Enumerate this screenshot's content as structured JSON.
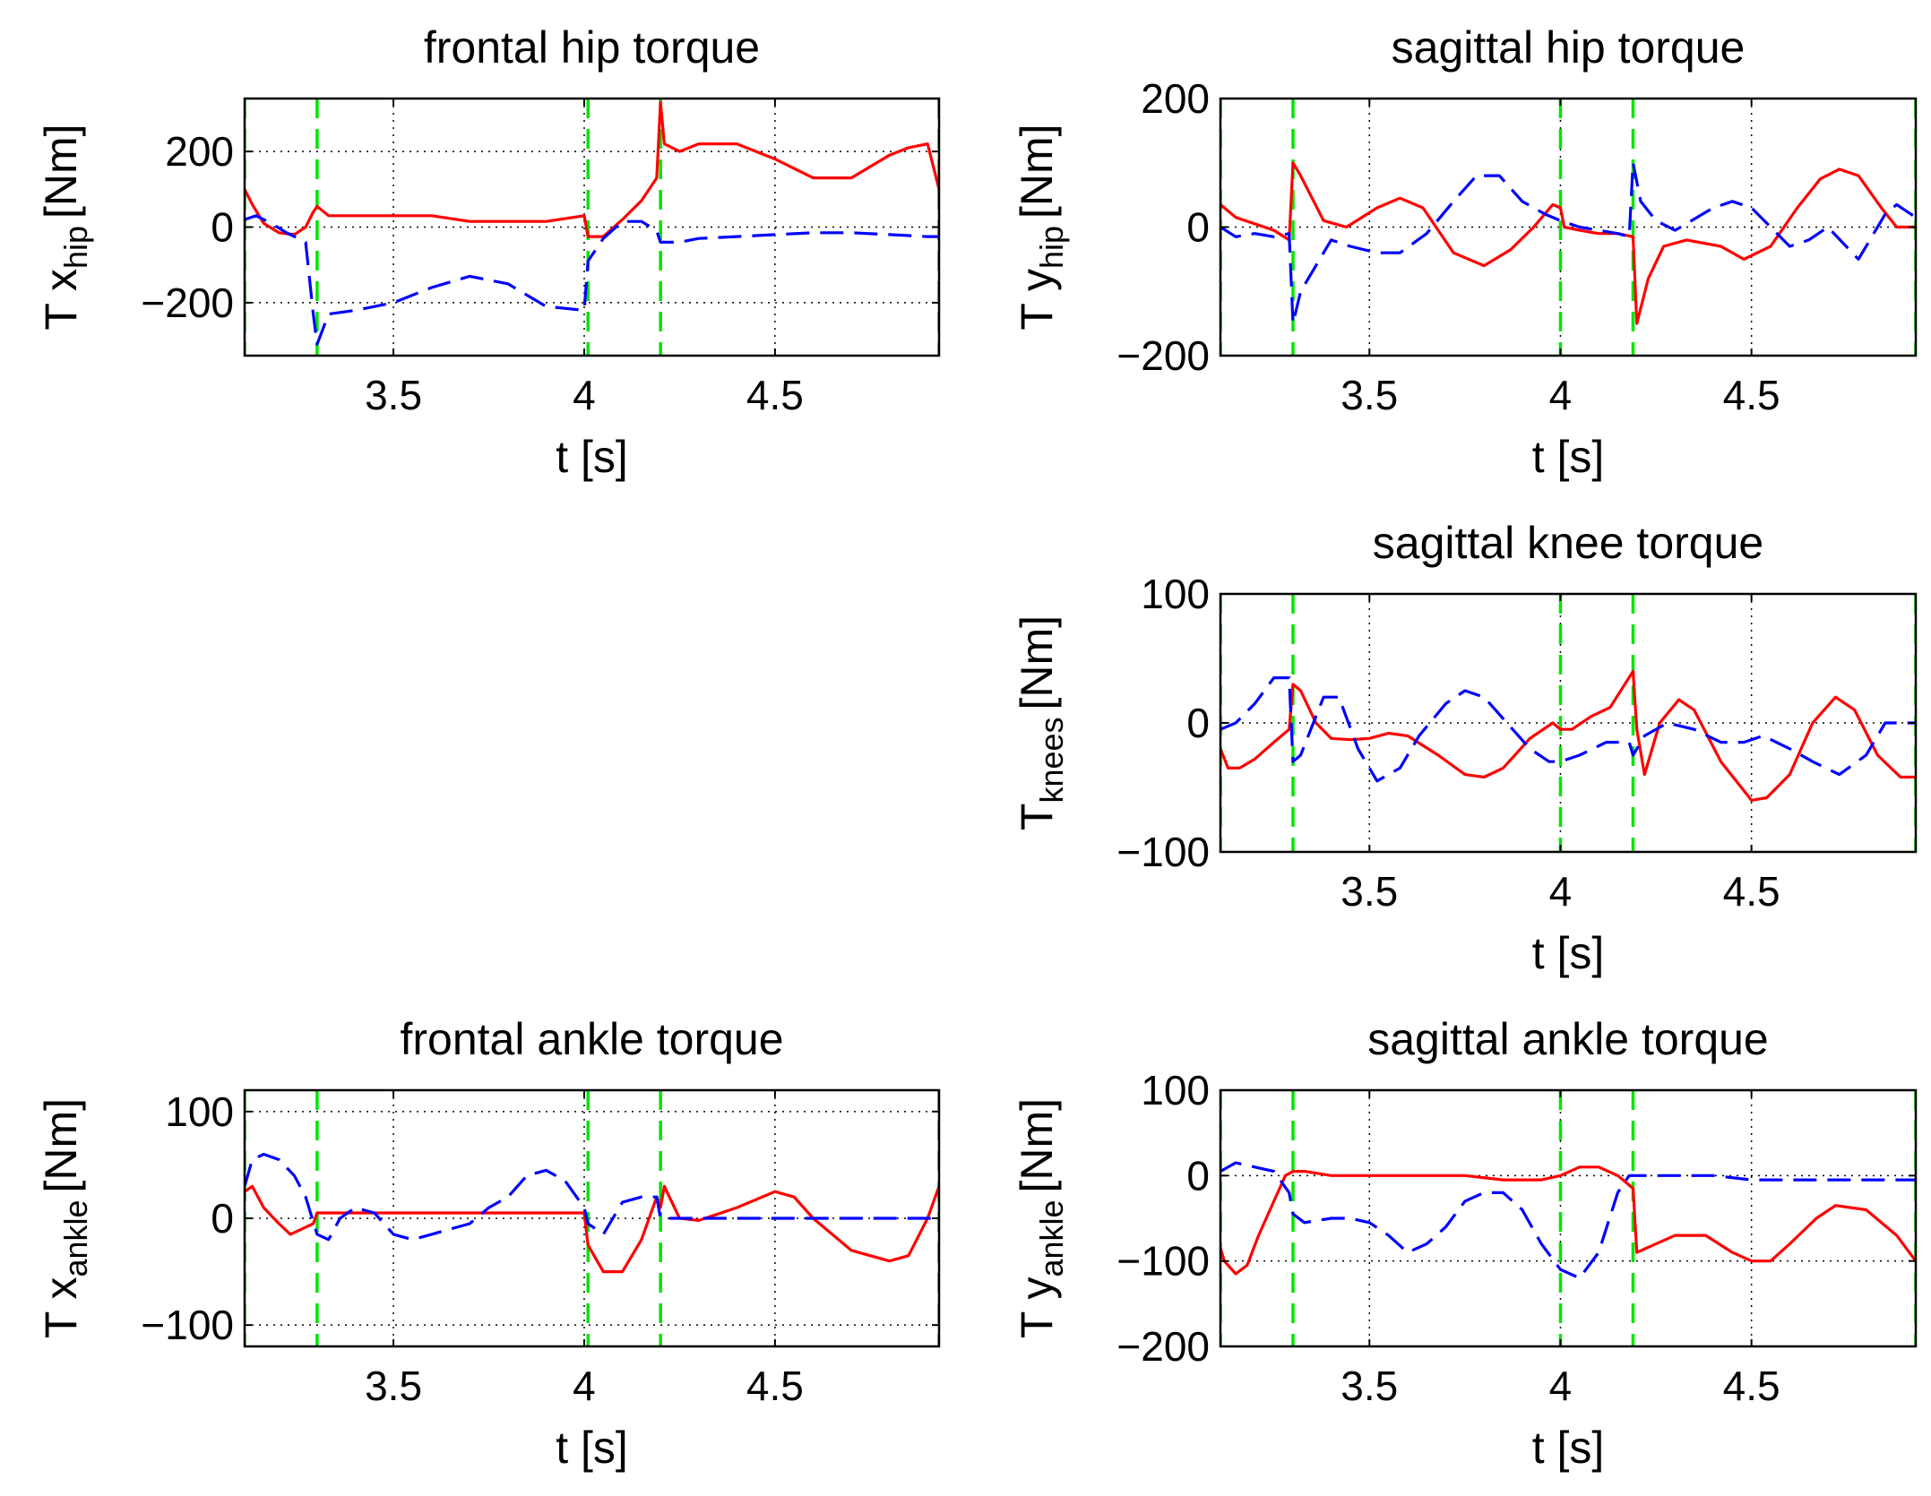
{
  "figure": {
    "colors": {
      "series_solid": "#ff0000",
      "series_dashed": "#0000ff",
      "event_lines": "#00e600",
      "axes": "#000000",
      "grid": "#000000"
    }
  },
  "chart_data": [
    {
      "id": "frontal_hip",
      "type": "line",
      "title": "frontal hip torque",
      "xlabel": "t [s]",
      "ylabel_main": "T x",
      "ylabel_sub": "hip",
      "ylabel_unit": "[Nm]",
      "xlim": [
        3.11,
        4.93
      ],
      "ylim": [
        -340,
        340
      ],
      "xticks": [
        3.5,
        4,
        4.5
      ],
      "xtick_labels": [
        "3.5",
        "4",
        "4.5"
      ],
      "yticks": [
        -200,
        0,
        200
      ],
      "ytick_labels": [
        "−200",
        "0",
        "200"
      ],
      "grid": true,
      "event_lines_x": [
        3.11,
        3.3,
        4.01,
        4.2,
        4.93
      ],
      "series": [
        {
          "style": "solid",
          "color": "#ff0000",
          "x": [
            3.11,
            3.13,
            3.16,
            3.2,
            3.24,
            3.27,
            3.29,
            3.3,
            3.33,
            3.4,
            3.5,
            3.6,
            3.7,
            3.8,
            3.9,
            4.0,
            4.01,
            4.05,
            4.1,
            4.15,
            4.19,
            4.2,
            4.21,
            4.25,
            4.3,
            4.4,
            4.5,
            4.6,
            4.7,
            4.8,
            4.85,
            4.9,
            4.93
          ],
          "y": [
            100,
            60,
            10,
            -15,
            -20,
            0,
            40,
            55,
            30,
            30,
            30,
            30,
            15,
            15,
            15,
            30,
            -25,
            -25,
            20,
            70,
            130,
            330,
            220,
            200,
            220,
            220,
            180,
            130,
            130,
            190,
            210,
            220,
            100
          ]
        },
        {
          "style": "dashed",
          "color": "#0000ff",
          "x": [
            3.11,
            3.14,
            3.18,
            3.22,
            3.27,
            3.29,
            3.3,
            3.33,
            3.4,
            3.5,
            3.6,
            3.7,
            3.8,
            3.9,
            4.0,
            4.01,
            4.05,
            4.1,
            4.15,
            4.19,
            4.2,
            4.25,
            4.3,
            4.4,
            4.5,
            4.6,
            4.7,
            4.8,
            4.9,
            4.93
          ],
          "y": [
            20,
            30,
            10,
            -15,
            -40,
            -230,
            -310,
            -230,
            -220,
            -200,
            -160,
            -130,
            -150,
            -210,
            -220,
            -90,
            -30,
            15,
            15,
            -10,
            -40,
            -40,
            -30,
            -25,
            -20,
            -15,
            -15,
            -20,
            -25,
            -25
          ]
        }
      ]
    },
    {
      "id": "sagittal_hip",
      "type": "line",
      "title": "sagittal hip torque",
      "xlabel": "t [s]",
      "ylabel_main": "T y",
      "ylabel_sub": "hip",
      "ylabel_unit": "[Nm]",
      "xlim": [
        3.11,
        4.93
      ],
      "ylim": [
        -200,
        200
      ],
      "xticks": [
        3.5,
        4,
        4.5
      ],
      "xtick_labels": [
        "3.5",
        "4",
        "4.5"
      ],
      "yticks": [
        -200,
        0,
        200
      ],
      "ytick_labels": [
        "−200",
        "0",
        "200"
      ],
      "grid": true,
      "event_lines_x": [
        3.11,
        3.3,
        4.0,
        4.19,
        4.93
      ],
      "series": [
        {
          "style": "solid",
          "color": "#ff0000",
          "x": [
            3.11,
            3.15,
            3.2,
            3.25,
            3.29,
            3.3,
            3.32,
            3.38,
            3.44,
            3.52,
            3.58,
            3.64,
            3.72,
            3.8,
            3.87,
            3.93,
            3.98,
            4.0,
            4.01,
            4.05,
            4.1,
            4.15,
            4.19,
            4.2,
            4.23,
            4.27,
            4.33,
            4.42,
            4.48,
            4.55,
            4.62,
            4.68,
            4.73,
            4.78,
            4.84,
            4.88,
            4.93
          ],
          "y": [
            35,
            15,
            5,
            -5,
            -20,
            100,
            80,
            10,
            0,
            30,
            45,
            30,
            -40,
            -60,
            -35,
            0,
            35,
            30,
            0,
            -5,
            -10,
            -10,
            -15,
            -150,
            -80,
            -30,
            -20,
            -30,
            -50,
            -30,
            30,
            75,
            90,
            80,
            30,
            0,
            0
          ]
        },
        {
          "style": "dashed",
          "color": "#0000ff",
          "x": [
            3.11,
            3.15,
            3.2,
            3.25,
            3.29,
            3.3,
            3.32,
            3.4,
            3.45,
            3.52,
            3.58,
            3.65,
            3.72,
            3.78,
            3.84,
            3.9,
            3.96,
            4.0,
            4.05,
            4.1,
            4.15,
            4.18,
            4.19,
            4.21,
            4.25,
            4.3,
            4.4,
            4.45,
            4.5,
            4.55,
            4.6,
            4.65,
            4.7,
            4.78,
            4.85,
            4.88,
            4.93
          ],
          "y": [
            0,
            -15,
            -10,
            -15,
            -10,
            -150,
            -100,
            -20,
            -30,
            -40,
            -40,
            -10,
            40,
            80,
            80,
            40,
            20,
            10,
            0,
            -5,
            -10,
            -15,
            100,
            40,
            10,
            -5,
            30,
            40,
            30,
            0,
            -30,
            -20,
            0,
            -50,
            20,
            35,
            15
          ]
        }
      ]
    },
    {
      "id": "sagittal_knee",
      "type": "line",
      "title": "sagittal knee torque",
      "xlabel": "t [s]",
      "ylabel_main": "T",
      "ylabel_sub": "knees",
      "ylabel_unit": "[Nm]",
      "xlim": [
        3.11,
        4.93
      ],
      "ylim": [
        -100,
        100
      ],
      "xticks": [
        3.5,
        4,
        4.5
      ],
      "xtick_labels": [
        "3.5",
        "4",
        "4.5"
      ],
      "yticks": [
        -100,
        0,
        100
      ],
      "ytick_labels": [
        "−100",
        "0",
        "100"
      ],
      "grid": true,
      "event_lines_x": [
        3.11,
        3.3,
        4.0,
        4.19,
        4.93
      ],
      "series": [
        {
          "style": "solid",
          "color": "#ff0000",
          "x": [
            3.11,
            3.13,
            3.16,
            3.2,
            3.25,
            3.29,
            3.3,
            3.32,
            3.36,
            3.4,
            3.45,
            3.5,
            3.55,
            3.6,
            3.68,
            3.75,
            3.8,
            3.85,
            3.92,
            3.98,
            4.0,
            4.03,
            4.08,
            4.13,
            4.19,
            4.2,
            4.22,
            4.26,
            4.31,
            4.35,
            4.42,
            4.5,
            4.54,
            4.6,
            4.66,
            4.72,
            4.77,
            4.83,
            4.89,
            4.93
          ],
          "y": [
            -20,
            -35,
            -35,
            -28,
            -15,
            -5,
            30,
            25,
            0,
            -12,
            -13,
            -12,
            -8,
            -10,
            -25,
            -40,
            -42,
            -35,
            -12,
            0,
            -5,
            -5,
            5,
            12,
            40,
            -5,
            -40,
            0,
            18,
            10,
            -30,
            -60,
            -58,
            -40,
            0,
            20,
            10,
            -25,
            -42,
            -42
          ]
        },
        {
          "style": "dashed",
          "color": "#0000ff",
          "x": [
            3.11,
            3.15,
            3.2,
            3.25,
            3.29,
            3.3,
            3.32,
            3.38,
            3.42,
            3.47,
            3.52,
            3.58,
            3.63,
            3.7,
            3.75,
            3.8,
            3.86,
            3.92,
            3.97,
            4.0,
            4.05,
            4.12,
            4.18,
            4.19,
            4.22,
            4.28,
            4.35,
            4.42,
            4.48,
            4.53,
            4.6,
            4.66,
            4.73,
            4.8,
            4.85,
            4.9,
            4.93
          ],
          "y": [
            -5,
            0,
            15,
            35,
            35,
            -30,
            -25,
            20,
            20,
            -20,
            -45,
            -35,
            -10,
            15,
            25,
            20,
            0,
            -20,
            -30,
            -30,
            -25,
            -15,
            -15,
            -25,
            -10,
            0,
            -5,
            -15,
            -15,
            -10,
            -20,
            -30,
            -40,
            -25,
            0,
            0,
            0
          ]
        }
      ]
    },
    {
      "id": "frontal_ankle",
      "type": "line",
      "title": "frontal ankle torque",
      "xlabel": "t [s]",
      "ylabel_main": "T x",
      "ylabel_sub": "ankle",
      "ylabel_unit": "[Nm]",
      "xlim": [
        3.11,
        4.93
      ],
      "ylim": [
        -120,
        120
      ],
      "xticks": [
        3.5,
        4,
        4.5
      ],
      "xtick_labels": [
        "3.5",
        "4",
        "4.5"
      ],
      "yticks": [
        -100,
        0,
        100
      ],
      "ytick_labels": [
        "−100",
        "0",
        "100"
      ],
      "grid": true,
      "event_lines_x": [
        3.11,
        3.3,
        4.01,
        4.2,
        4.93
      ],
      "series": [
        {
          "style": "solid",
          "color": "#ff0000",
          "x": [
            3.11,
            3.13,
            3.16,
            3.2,
            3.23,
            3.26,
            3.29,
            3.3,
            3.4,
            3.6,
            3.8,
            4.0,
            4.01,
            4.05,
            4.1,
            4.15,
            4.19,
            4.2,
            4.21,
            4.25,
            4.3,
            4.4,
            4.5,
            4.55,
            4.6,
            4.7,
            4.8,
            4.85,
            4.9,
            4.93
          ],
          "y": [
            25,
            30,
            10,
            -5,
            -15,
            -10,
            -5,
            5,
            5,
            5,
            5,
            5,
            -25,
            -50,
            -50,
            -20,
            20,
            10,
            30,
            0,
            -2,
            10,
            25,
            20,
            0,
            -30,
            -40,
            -35,
            0,
            30
          ]
        },
        {
          "style": "dashed",
          "color": "#0000ff",
          "x": [
            3.11,
            3.13,
            3.16,
            3.2,
            3.24,
            3.27,
            3.3,
            3.33,
            3.36,
            3.4,
            3.45,
            3.5,
            3.55,
            3.6,
            3.65,
            3.7,
            3.75,
            3.8,
            3.85,
            3.9,
            3.95,
            4.0,
            4.01,
            4.05,
            4.1,
            4.15,
            4.19,
            4.2,
            4.25,
            4.3,
            4.4,
            4.5,
            4.6,
            4.7,
            4.8,
            4.9,
            4.93
          ],
          "y": [
            30,
            55,
            60,
            55,
            40,
            20,
            -15,
            -20,
            0,
            10,
            5,
            -15,
            -20,
            -15,
            -10,
            -5,
            10,
            20,
            40,
            45,
            35,
            10,
            -5,
            -15,
            15,
            20,
            20,
            0,
            0,
            0,
            0,
            0,
            0,
            0,
            0,
            0,
            0
          ]
        }
      ]
    },
    {
      "id": "sagittal_ankle",
      "type": "line",
      "title": "sagittal ankle torque",
      "xlabel": "t [s]",
      "ylabel_main": "T y",
      "ylabel_sub": "ankle",
      "ylabel_unit": "[Nm]",
      "xlim": [
        3.11,
        4.93
      ],
      "ylim": [
        -200,
        100
      ],
      "xticks": [
        3.5,
        4,
        4.5
      ],
      "xtick_labels": [
        "3.5",
        "4",
        "4.5"
      ],
      "yticks": [
        -200,
        -100,
        0,
        100
      ],
      "ytick_labels": [
        "−200",
        "−100",
        "0",
        "100"
      ],
      "grid": true,
      "event_lines_x": [
        3.11,
        3.3,
        4.0,
        4.19,
        4.93
      ],
      "series": [
        {
          "style": "solid",
          "color": "#ff0000",
          "x": [
            3.11,
            3.12,
            3.15,
            3.18,
            3.21,
            3.25,
            3.28,
            3.3,
            3.33,
            3.4,
            3.6,
            3.75,
            3.85,
            3.95,
            4.0,
            4.05,
            4.1,
            4.15,
            4.19,
            4.2,
            4.25,
            4.3,
            4.38,
            4.45,
            4.5,
            4.55,
            4.6,
            4.67,
            4.72,
            4.8,
            4.88,
            4.93
          ],
          "y": [
            -85,
            -100,
            -115,
            -105,
            -70,
            -30,
            0,
            5,
            5,
            0,
            0,
            0,
            -5,
            -5,
            0,
            10,
            10,
            0,
            -15,
            -90,
            -80,
            -70,
            -70,
            -90,
            -100,
            -100,
            -80,
            -50,
            -35,
            -40,
            -70,
            -100
          ]
        },
        {
          "style": "dashed",
          "color": "#0000ff",
          "x": [
            3.11,
            3.15,
            3.2,
            3.25,
            3.29,
            3.3,
            3.33,
            3.4,
            3.45,
            3.5,
            3.55,
            3.6,
            3.65,
            3.7,
            3.75,
            3.8,
            3.85,
            3.9,
            3.95,
            4.0,
            4.05,
            4.1,
            4.15,
            4.18,
            4.2,
            4.25,
            4.3,
            4.4,
            4.5,
            4.6,
            4.7,
            4.8,
            4.9,
            4.93
          ],
          "y": [
            5,
            15,
            10,
            5,
            -20,
            -45,
            -55,
            -50,
            -50,
            -55,
            -70,
            -90,
            -80,
            -60,
            -30,
            -20,
            -20,
            -40,
            -80,
            -110,
            -120,
            -90,
            -20,
            0,
            0,
            0,
            0,
            0,
            -5,
            -5,
            -5,
            -5,
            -5,
            -5
          ]
        }
      ]
    }
  ]
}
